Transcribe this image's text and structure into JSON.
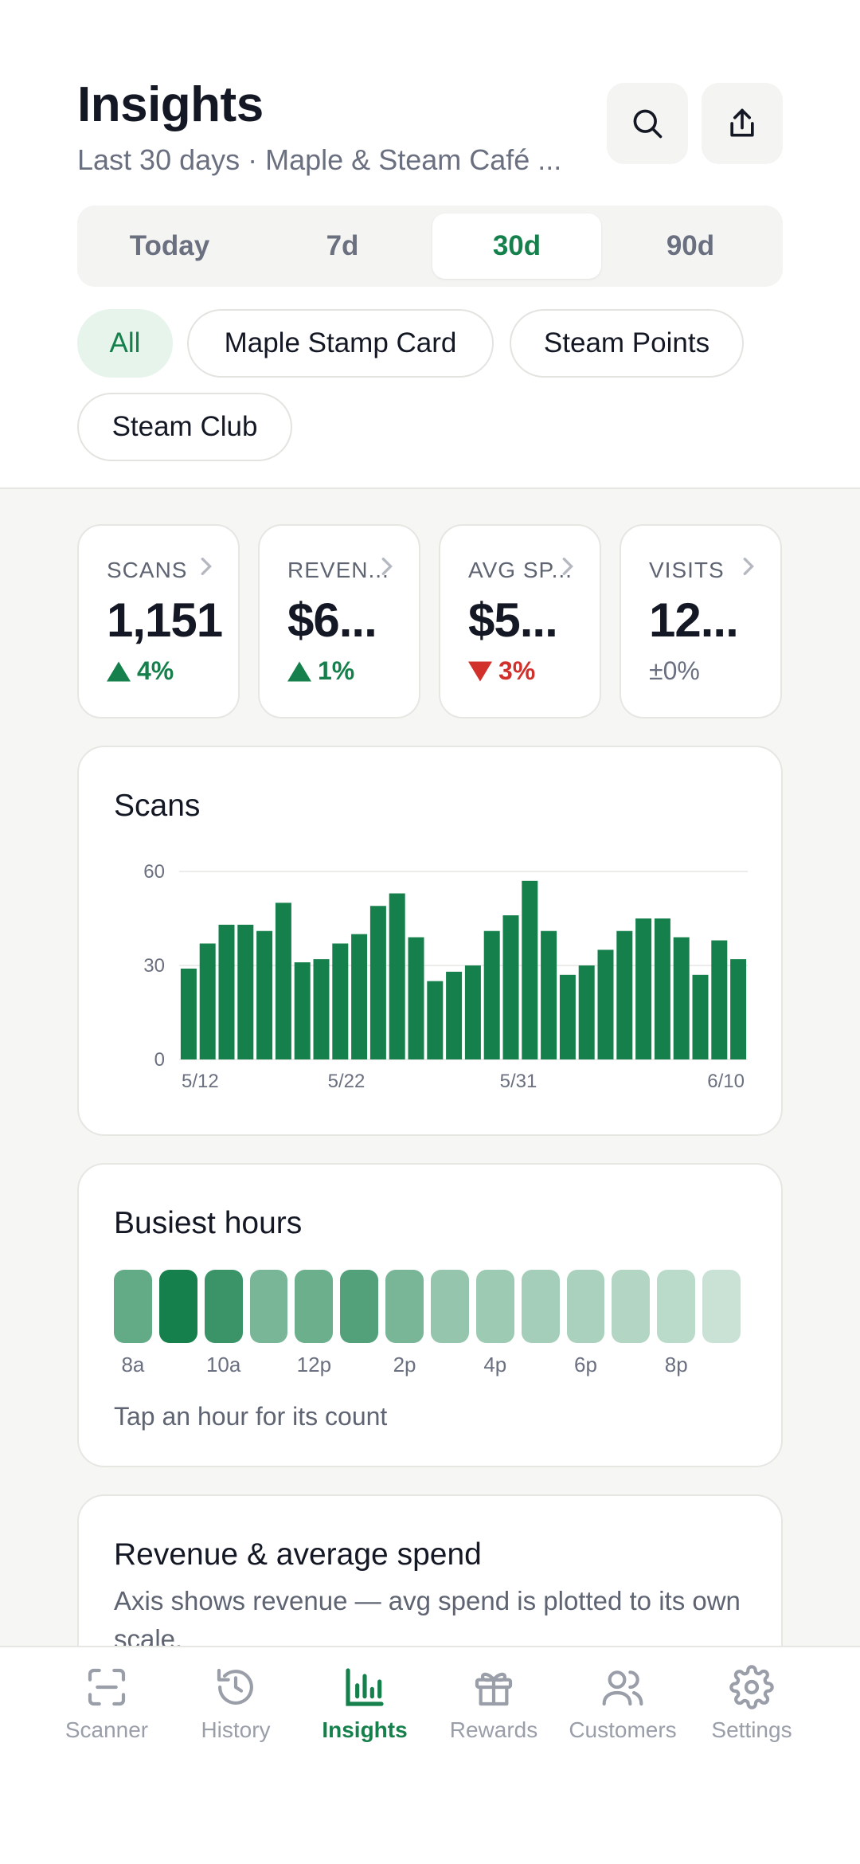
{
  "header": {
    "title": "Insights",
    "subtitle": "Last 30 days · Maple & Steam Café ...",
    "search_icon": "search-icon",
    "share_icon": "share-icon"
  },
  "range_tabs": [
    {
      "label": "Today",
      "active": false
    },
    {
      "label": "7d",
      "active": false
    },
    {
      "label": "30d",
      "active": true
    },
    {
      "label": "90d",
      "active": false
    }
  ],
  "programs": [
    {
      "label": "All",
      "active": true
    },
    {
      "label": "Maple Stamp Card",
      "active": false
    },
    {
      "label": "Steam Points",
      "active": false
    },
    {
      "label": "Steam Club",
      "active": false
    }
  ],
  "stats": [
    {
      "label": "SCANS",
      "value": "1,151",
      "delta": "4%",
      "trend": "up"
    },
    {
      "label": "REVEN...",
      "value": "$6...",
      "delta": "1%",
      "trend": "up"
    },
    {
      "label": "AVG SP...",
      "value": "$5...",
      "delta": "3%",
      "trend": "down"
    },
    {
      "label": "VISITS",
      "value": "12...",
      "delta": "±0%",
      "trend": "flat"
    }
  ],
  "scans_chart": {
    "title": "Scans",
    "chart_data": {
      "type": "bar",
      "title": "Scans",
      "ylim": [
        0,
        60
      ],
      "yticks": [
        "0",
        "30",
        "60"
      ],
      "xticks": [
        "5/12",
        "5/22",
        "5/31",
        "6/10"
      ],
      "values": [
        29,
        37,
        43,
        43,
        41,
        50,
        31,
        32,
        37,
        40,
        49,
        53,
        39,
        25,
        28,
        30,
        41,
        46,
        57,
        41,
        27,
        30,
        35,
        41,
        45,
        45,
        39,
        27,
        38,
        32
      ],
      "color": "#15804b"
    }
  },
  "busiest_hours": {
    "title": "Busiest hours",
    "labels": [
      "8a",
      "10a",
      "12p",
      "2p",
      "4p",
      "6p",
      "8p"
    ],
    "intensity": [
      0.62,
      1.0,
      0.82,
      0.52,
      0.58,
      0.7,
      0.52,
      0.38,
      0.34,
      0.3,
      0.28,
      0.24,
      0.2,
      0.12
    ],
    "hint": "Tap an hour for its count"
  },
  "revenue_card": {
    "title": "Revenue & average spend",
    "description": "Axis shows revenue — avg spend is plotted to its own scale."
  },
  "nav": [
    {
      "label": "Scanner",
      "icon": "scanner-icon",
      "active": false
    },
    {
      "label": "History",
      "icon": "history-icon",
      "active": false
    },
    {
      "label": "Insights",
      "icon": "insights-icon",
      "active": true
    },
    {
      "label": "Rewards",
      "icon": "gift-icon",
      "active": false
    },
    {
      "label": "Customers",
      "icon": "customers-icon",
      "active": false
    },
    {
      "label": "Settings",
      "icon": "gear-icon",
      "active": false
    }
  ],
  "colors": {
    "accent": "#15804b",
    "down": "#d2302b",
    "muted": "#6b7080"
  }
}
